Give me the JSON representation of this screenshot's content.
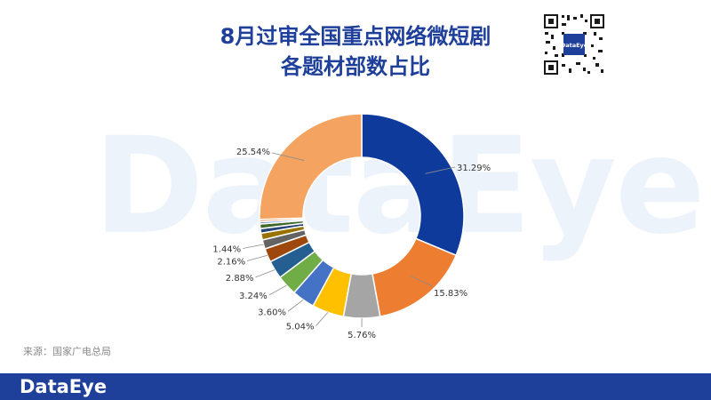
{
  "title_line1": "8月过审全国重点网络微短剧",
  "title_line2": "各题材部数占比",
  "watermark_text": "DataEye",
  "qr_badge_text": "DataEye",
  "source_text": "来源：国家广电总局",
  "footer_logo_text": "DataEye",
  "colors": {
    "brand": "#1e3f9a",
    "footer": "#1e3f9a"
  },
  "chart_data": {
    "type": "pie",
    "donut": true,
    "title": "8月过审全国重点网络微短剧各题材部数占比",
    "slices": [
      {
        "value": 31.29,
        "label": "31.29%",
        "color": "#0e3a9b"
      },
      {
        "value": 15.83,
        "label": "15.83%",
        "color": "#ed7d31"
      },
      {
        "value": 5.76,
        "label": "5.76%",
        "color": "#a5a5a5"
      },
      {
        "value": 5.04,
        "label": "5.04%",
        "color": "#ffc000"
      },
      {
        "value": 3.6,
        "label": "3.60%",
        "color": "#4472c4"
      },
      {
        "value": 3.24,
        "label": "3.24%",
        "color": "#70ad47"
      },
      {
        "value": 2.88,
        "label": "2.88%",
        "color": "#255e91"
      },
      {
        "value": 2.16,
        "label": "2.16%",
        "color": "#9e480e"
      },
      {
        "value": 1.44,
        "label": "1.44%",
        "color": "#636363"
      },
      {
        "value": 1.08,
        "label": "",
        "color": "#997300"
      },
      {
        "value": 0.72,
        "label": "",
        "color": "#264478"
      },
      {
        "value": 0.72,
        "label": "",
        "color": "#43682b"
      },
      {
        "value": 0.36,
        "label": "",
        "color": "#698ed0"
      },
      {
        "value": 0.36,
        "label": "",
        "color": "#f1975a"
      },
      {
        "value": 25.54,
        "label": "25.54%",
        "color": "#f4a460"
      }
    ]
  }
}
